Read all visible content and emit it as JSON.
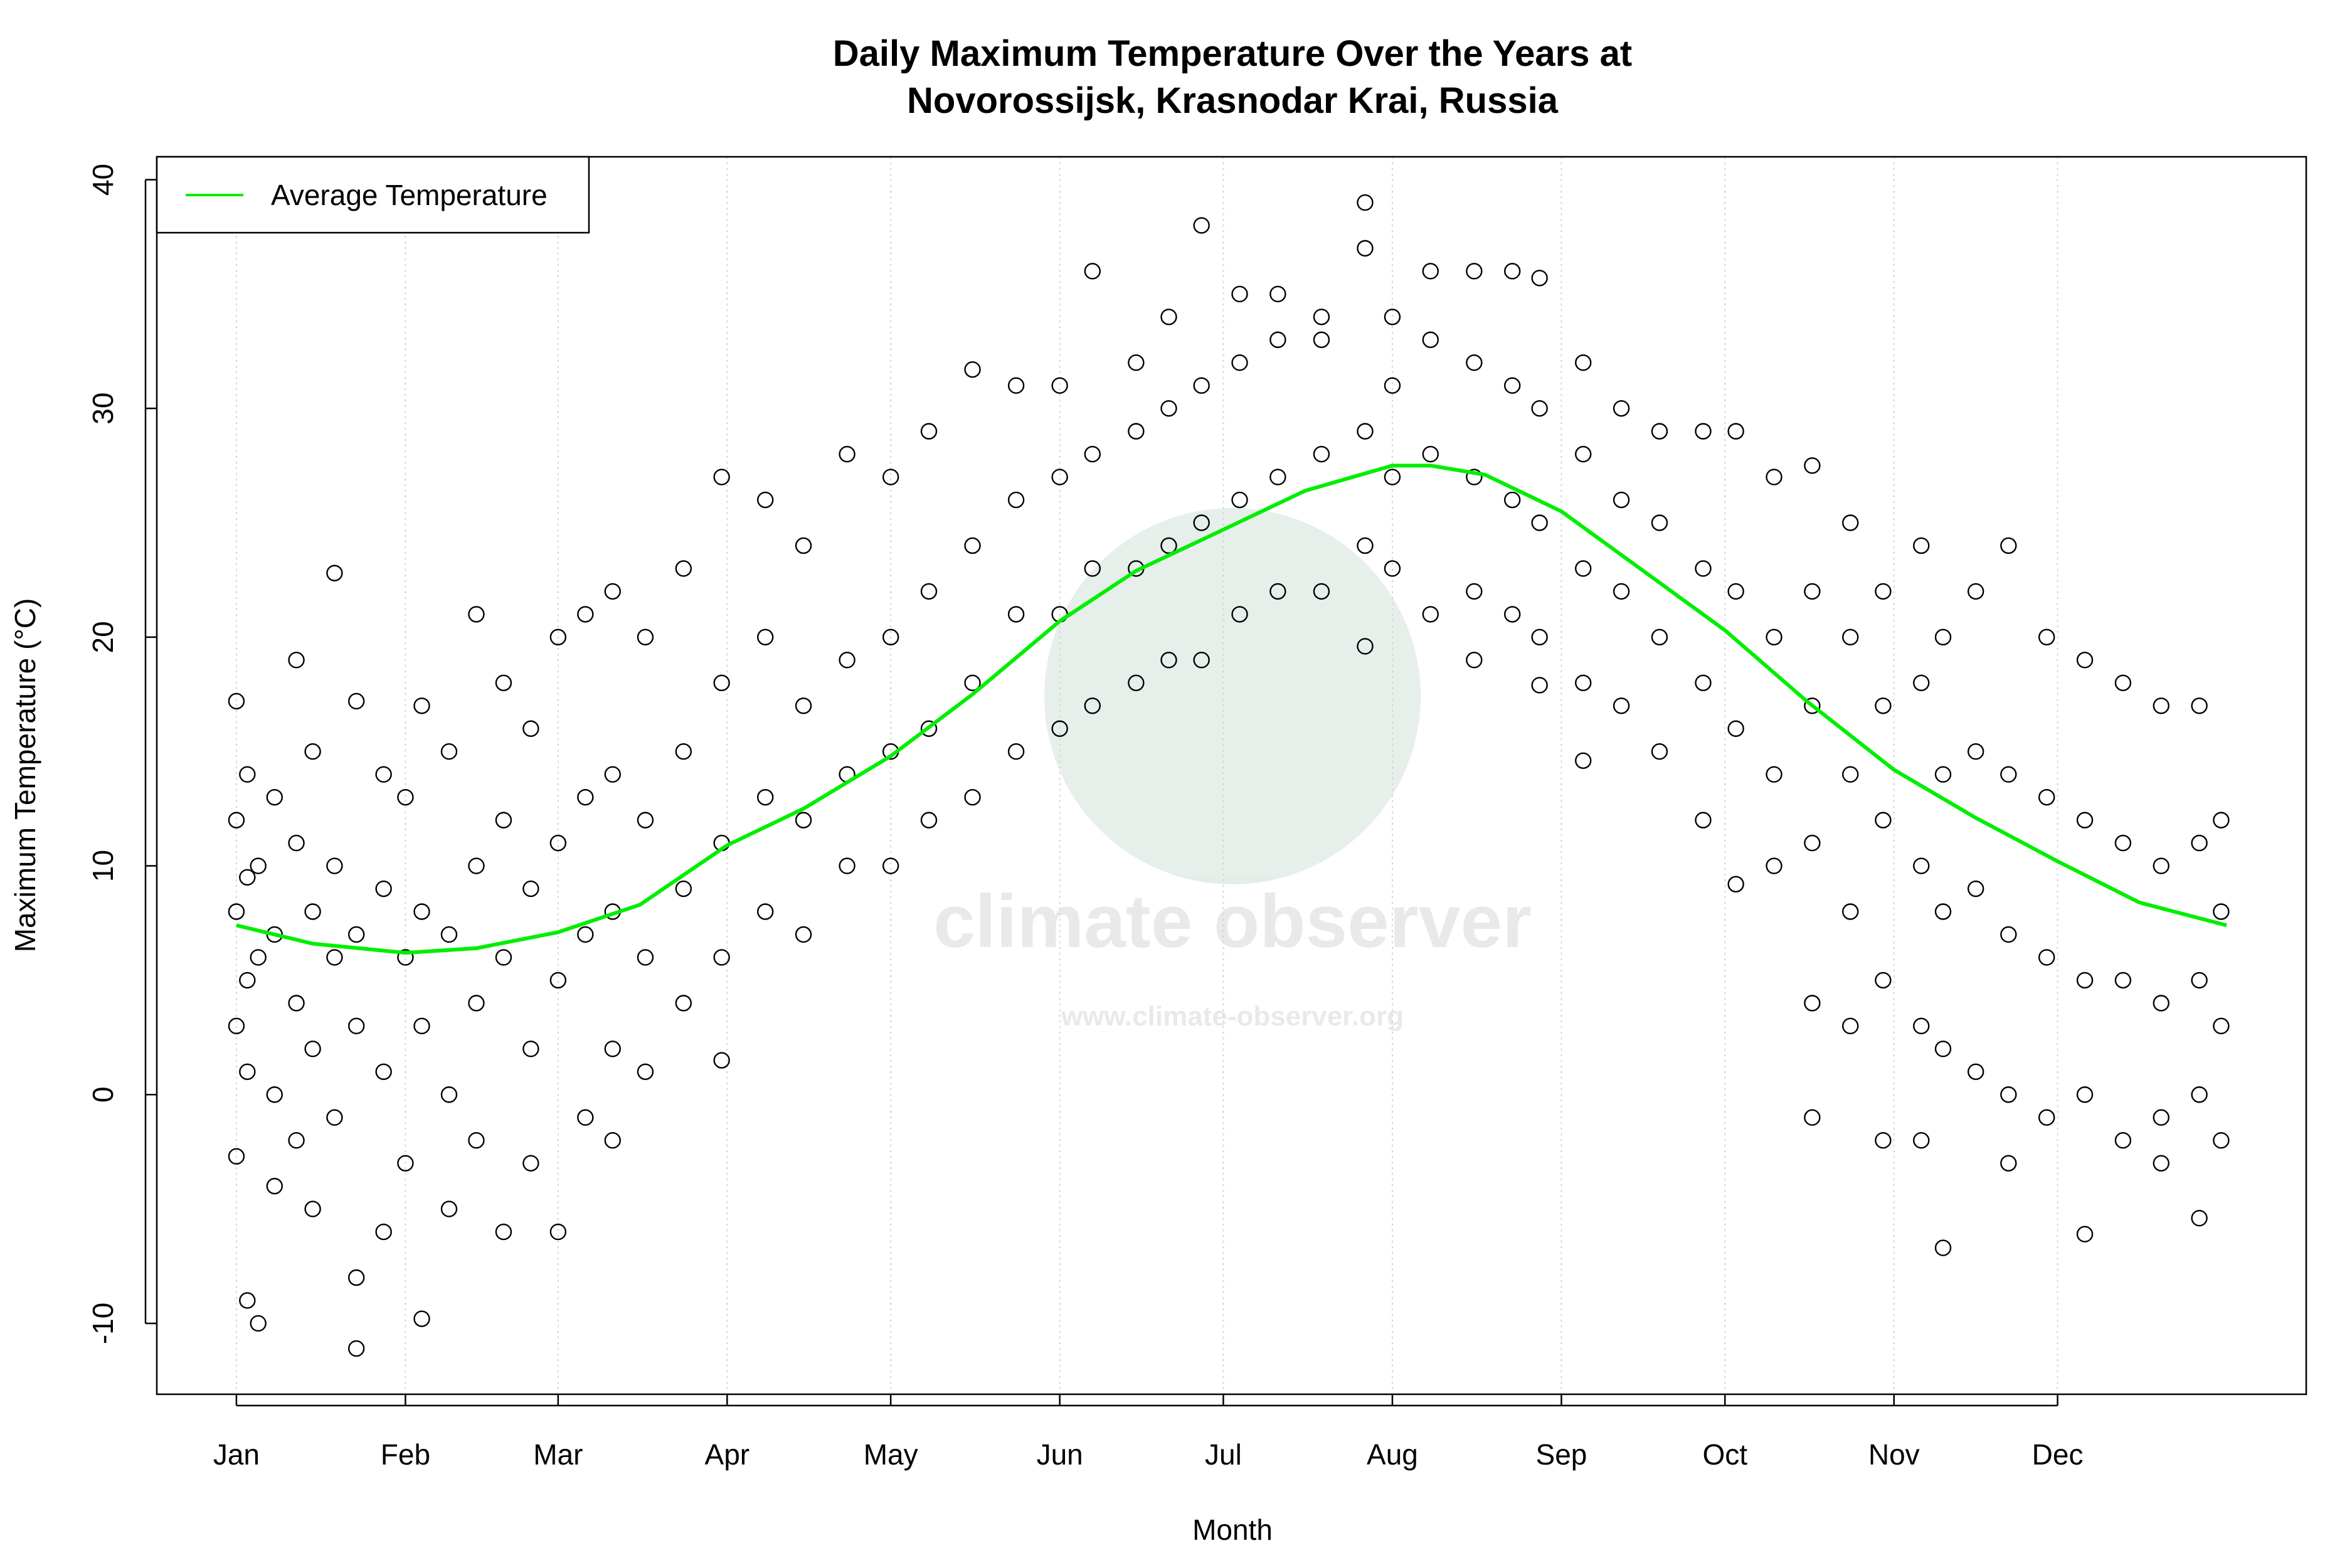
{
  "chart_data": {
    "type": "scatter",
    "title": "Daily Maximum Temperature Over the Years at",
    "subtitle": "Novorossijsk, Krasnodar Krai, Russia",
    "x_label": "Month",
    "y_label": "Maximum Temperature (°C)",
    "watermark": {
      "title": "climate observer",
      "url": "www.climate-observer.org"
    },
    "xlim": [
      -13.6,
      380.6
    ],
    "ylim": [
      -13.1,
      41.0
    ],
    "xticks": [
      {
        "value": 1,
        "label": "Jan"
      },
      {
        "value": 32,
        "label": "Feb"
      },
      {
        "value": 60,
        "label": "Mar"
      },
      {
        "value": 91,
        "label": "Apr"
      },
      {
        "value": 121,
        "label": "May"
      },
      {
        "value": 152,
        "label": "Jun"
      },
      {
        "value": 182,
        "label": "Jul"
      },
      {
        "value": 213,
        "label": "Aug"
      },
      {
        "value": 244,
        "label": "Sep"
      },
      {
        "value": 274,
        "label": "Oct"
      },
      {
        "value": 305,
        "label": "Nov"
      },
      {
        "value": 335,
        "label": "Dec"
      }
    ],
    "yticks": [
      -10,
      0,
      10,
      20,
      30,
      40
    ],
    "grid": "vertical",
    "legend_position": "topleft",
    "points": {
      "color": "#000000",
      "x": [
        1,
        1,
        1,
        1,
        1,
        3,
        3,
        3,
        3,
        3,
        5,
        5,
        5,
        8,
        8,
        8,
        8,
        12,
        12,
        12,
        12,
        15,
        15,
        15,
        15,
        19,
        19,
        19,
        19,
        23,
        23,
        23,
        23,
        23,
        28,
        28,
        28,
        28,
        32,
        32,
        32,
        35,
        35,
        35,
        35,
        40,
        40,
        40,
        40,
        45,
        45,
        45,
        45,
        50,
        50,
        50,
        50,
        55,
        55,
        55,
        55,
        60,
        60,
        60,
        60,
        65,
        65,
        65,
        65,
        70,
        70,
        70,
        70,
        70,
        76,
        76,
        76,
        76,
        83,
        83,
        83,
        83,
        90,
        90,
        90,
        90,
        90,
        98,
        98,
        98,
        98,
        105,
        105,
        105,
        105,
        113,
        113,
        113,
        113,
        121,
        121,
        121,
        121,
        128,
        128,
        128,
        128,
        136,
        136,
        136,
        136,
        144,
        144,
        144,
        144,
        152,
        152,
        152,
        152,
        158,
        158,
        158,
        158,
        166,
        166,
        166,
        166,
        172,
        172,
        172,
        172,
        178,
        178,
        178,
        178,
        185,
        185,
        185,
        185,
        192,
        192,
        192,
        192,
        200,
        200,
        200,
        200,
        208,
        208,
        208,
        208,
        208,
        213,
        213,
        213,
        213,
        220,
        220,
        220,
        220,
        228,
        228,
        228,
        228,
        228,
        235,
        235,
        235,
        235,
        240,
        240,
        240,
        240,
        240,
        248,
        248,
        248,
        248,
        248,
        255,
        255,
        255,
        255,
        262,
        262,
        262,
        262,
        270,
        270,
        270,
        270,
        276,
        276,
        276,
        276,
        283,
        283,
        283,
        283,
        290,
        290,
        290,
        290,
        290,
        290,
        297,
        297,
        297,
        297,
        297,
        303,
        303,
        303,
        303,
        303,
        310,
        310,
        310,
        310,
        310,
        314,
        314,
        314,
        314,
        314,
        320,
        320,
        320,
        320,
        326,
        326,
        326,
        326,
        326,
        333,
        333,
        333,
        333,
        340,
        340,
        340,
        340,
        340,
        347,
        347,
        347,
        347,
        354,
        354,
        354,
        354,
        354,
        361,
        361,
        361,
        361,
        361,
        365,
        365,
        365,
        365
      ],
      "y": [
        17.2,
        12,
        8,
        3,
        -2.7,
        14,
        9.5,
        5,
        1,
        -9,
        10,
        6,
        -10,
        13,
        7,
        0,
        -4,
        19,
        11,
        4,
        -2,
        15,
        8,
        2,
        -5,
        22.8,
        10,
        6,
        -1,
        17.2,
        7,
        3,
        -11.1,
        -8,
        14,
        9,
        1,
        -6,
        13,
        6,
        -3,
        17,
        8,
        3,
        -9.8,
        15,
        7,
        0,
        -5,
        21,
        10,
        4,
        -2,
        18,
        12,
        6,
        -6,
        16,
        9,
        2,
        -3,
        20,
        11,
        5,
        -6,
        21,
        13,
        7,
        -1,
        22,
        14,
        8,
        2,
        -2,
        20,
        12,
        6,
        1,
        23,
        15,
        9,
        4,
        27,
        18,
        11,
        6,
        1.5,
        26,
        20,
        13,
        8,
        24,
        17,
        12,
        7,
        28,
        19,
        14,
        10,
        27,
        20,
        15,
        10,
        29,
        22,
        16,
        12,
        31.7,
        24,
        18,
        13,
        31,
        26,
        21,
        15,
        31,
        27,
        21,
        16,
        36,
        28,
        23,
        17,
        32,
        29,
        23,
        18,
        34,
        30,
        24,
        19,
        38,
        31,
        25,
        19,
        35,
        32,
        26,
        21,
        35,
        33,
        27,
        22,
        34,
        33,
        28,
        22,
        39,
        37,
        29,
        24,
        19.6,
        34,
        31,
        27,
        23,
        36,
        33,
        28,
        21,
        36,
        32,
        27,
        22,
        19,
        36,
        31,
        26,
        21,
        35.7,
        30,
        25,
        20,
        17.9,
        32,
        28,
        23,
        18,
        14.6,
        30,
        26,
        22,
        17,
        29,
        25,
        20,
        15,
        29,
        23,
        18,
        12,
        29,
        22,
        16,
        9.2,
        27,
        20,
        14,
        10,
        27.5,
        22,
        17,
        11,
        4,
        -1,
        25,
        20,
        14,
        8,
        3,
        22,
        17,
        12,
        5,
        -2,
        24,
        18,
        10,
        3,
        -2,
        20,
        14,
        8,
        2,
        -6.7,
        22,
        15,
        9,
        1,
        24,
        14,
        7,
        0,
        -3,
        20,
        13,
        6,
        -1,
        19,
        12,
        5,
        0,
        -6.1,
        18,
        11,
        5,
        -2,
        17,
        10,
        4,
        -1,
        -3,
        17,
        11,
        5,
        0,
        -5.4,
        12,
        8,
        3,
        -2
      ]
    },
    "series": [
      {
        "name": "Average Temperature",
        "color": "#00ee00",
        "x": [
          1,
          15,
          32,
          45,
          60,
          75,
          91,
          105,
          121,
          136,
          152,
          166,
          182,
          197,
          213,
          220,
          230,
          244,
          259,
          274,
          289,
          305,
          320,
          335,
          350,
          366
        ],
        "values": [
          7.4,
          6.6,
          6.2,
          6.4,
          7.1,
          8.3,
          10.9,
          12.5,
          14.8,
          17.5,
          20.7,
          22.9,
          24.7,
          26.4,
          27.5,
          27.5,
          27.1,
          25.5,
          22.9,
          20.3,
          17.2,
          14.2,
          12.1,
          10.2,
          8.4,
          7.4
        ]
      }
    ]
  }
}
